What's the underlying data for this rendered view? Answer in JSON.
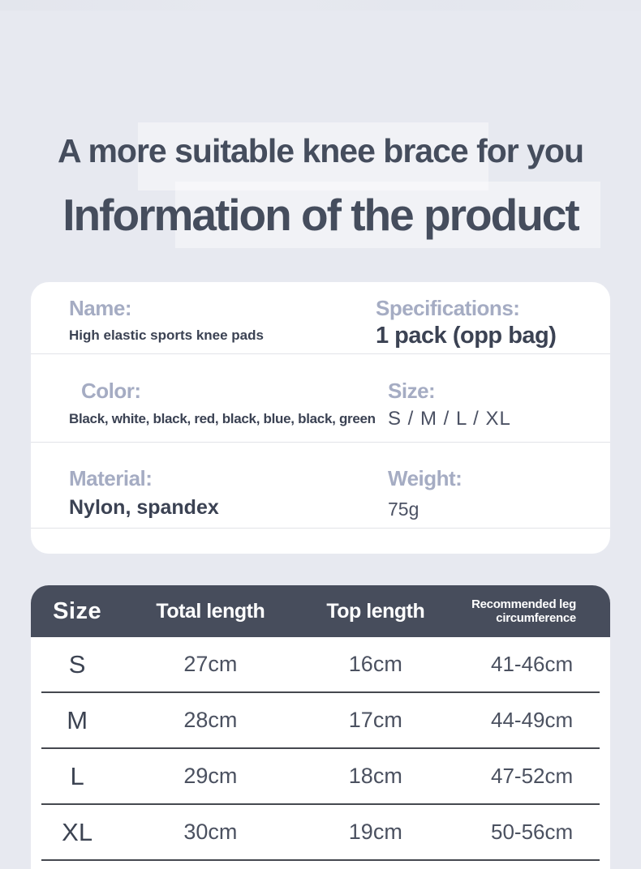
{
  "colors": {
    "background": "#e7e9f0",
    "card_background": "#ffffff",
    "table_header_background": "#474d5c",
    "table_header_text": "#ffffff",
    "heading_text": "#454d5d",
    "label_text": "#a5acc3",
    "value_text": "#3b4253",
    "row_divider": "#45484f"
  },
  "headings": {
    "subtitle": "A more suitable knee brace for you",
    "title": "Information of the product"
  },
  "info_card": {
    "rows": [
      {
        "left": {
          "label": "Name:",
          "value": "High elastic sports knee pads"
        },
        "right": {
          "label": "Specifications:",
          "value": "1 pack (opp bag)"
        }
      },
      {
        "left": {
          "label": "Color:",
          "value": "Black, white, black, red, black, blue, black, green"
        },
        "right": {
          "label": "Size:",
          "value": "S / M / L / XL"
        }
      },
      {
        "left": {
          "label": "Material:",
          "value": "Nylon, spandex"
        },
        "right": {
          "label": "Weight:",
          "value": "75g"
        }
      }
    ]
  },
  "size_table": {
    "type": "table",
    "columns": [
      "Size",
      "Total length",
      "Top length",
      "Recommended leg circumference"
    ],
    "rows": [
      [
        "S",
        "27cm",
        "16cm",
        "41-46cm"
      ],
      [
        "M",
        "28cm",
        "17cm",
        "44-49cm"
      ],
      [
        "L",
        "29cm",
        "18cm",
        "47-52cm"
      ],
      [
        "XL",
        "30cm",
        "19cm",
        "50-56cm"
      ]
    ]
  }
}
